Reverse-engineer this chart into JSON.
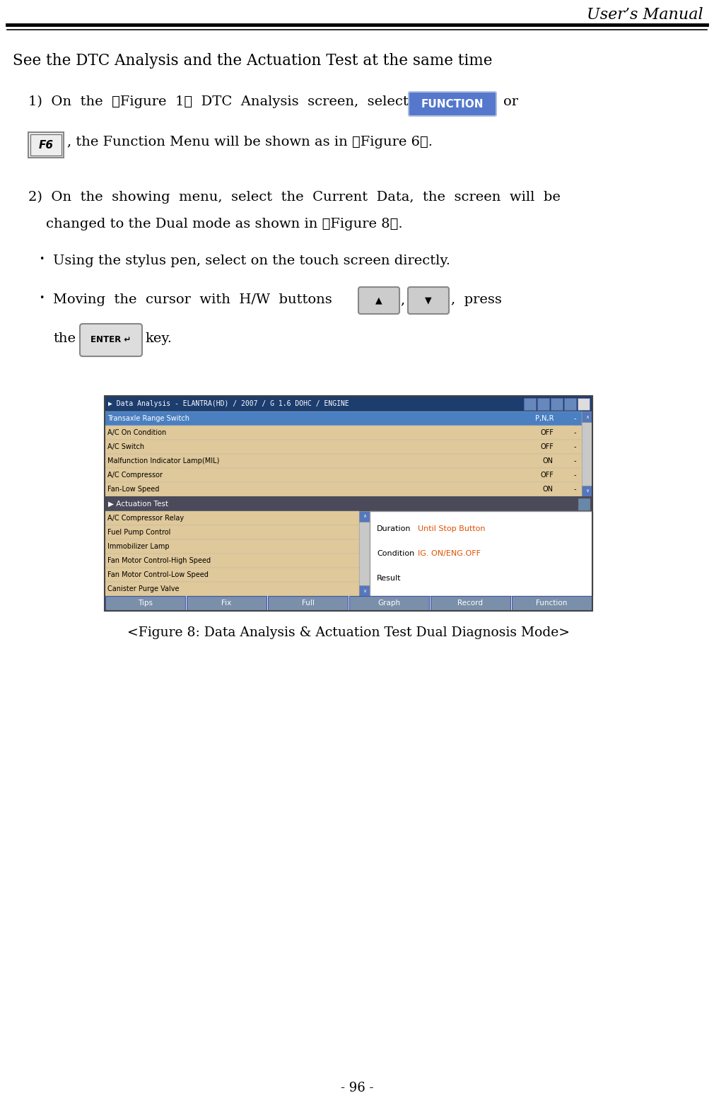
{
  "title": "User’s Manual",
  "page_number": "- 96 -",
  "heading": "See the DTC Analysis and the Actuation Test at the same time",
  "figure_caption": "<Figure 8: Data Analysis & Actuation Test Dual Diagnosis Mode>",
  "screen_title": "▶ Data Analysis - ELANTRA(HD) / 2007 / G 1.6 DOHC / ENGINE",
  "screen_title_bg": "#1c3d6e",
  "row1_label": "Transaxle Range Switch",
  "row1_value": "P,N,R",
  "row1_unit": "-",
  "row1_bg": "#4a7fc1",
  "row2_label": "A/C On Condition",
  "row2_value": "OFF",
  "row2_unit": "-",
  "row2_bg": "#dfc89a",
  "row3_label": "A/C Switch",
  "row3_value": "OFF",
  "row3_unit": "-",
  "row3_bg": "#dfc89a",
  "row4_label": "Malfunction Indicator Lamp(MIL)",
  "row4_value": "ON",
  "row4_unit": "-",
  "row4_bg": "#dfc89a",
  "row5_label": "A/C Compressor",
  "row5_value": "OFF",
  "row5_unit": "-",
  "row5_bg": "#dfc89a",
  "row6_label": "Fan-Low Speed",
  "row6_value": "ON",
  "row6_unit": "-",
  "row6_bg": "#dfc89a",
  "actuation_title": "▶ Actuation Test",
  "actuation_bg": "#4a4a5a",
  "act_row1": "A/C Compressor Relay",
  "act_row2": "Fuel Pump Control",
  "act_row3": "Immobilizer Lamp",
  "act_row4": "Fan Motor Control-High Speed",
  "act_row5": "Fan Motor Control-Low Speed",
  "act_row6": "Canister Purge Valve",
  "act_bg": "#dfc89a",
  "info_duration_label": "Duration",
  "info_duration_value": "Until Stop Button",
  "info_condition_label": "Condition",
  "info_condition_value": "IG. ON/ENG.OFF",
  "info_result_label": "Result",
  "info_orange": "#e05000",
  "btn_tips": "Tips",
  "btn_fix": "Fix",
  "btn_full": "Full",
  "btn_graph": "Graph",
  "btn_record": "Record",
  "btn_function": "Function",
  "btn_bg": "#7a8faa",
  "btn_color": "#ffffff",
  "background_color": "#ffffff",
  "function_btn_color": "#5577cc",
  "function_btn_text": "FUNCTION",
  "f6_btn_text": "F6"
}
